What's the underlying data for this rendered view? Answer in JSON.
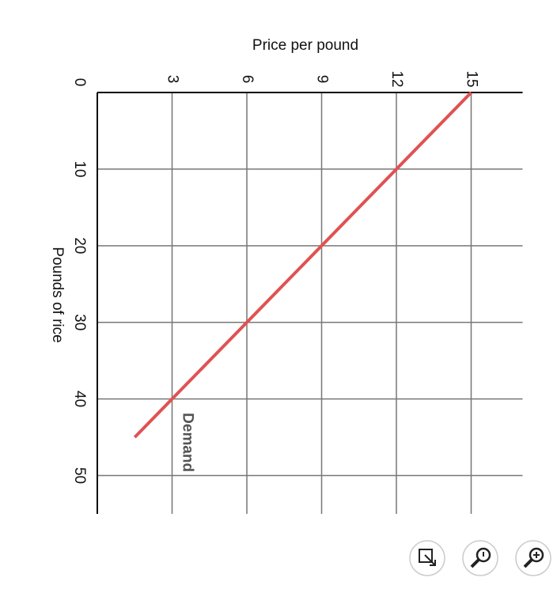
{
  "chart_data": {
    "type": "line",
    "xlabel": "Price per pound",
    "ylabel": "Pounds of rice",
    "x": [
      15,
      1.5
    ],
    "series": [
      {
        "name": "Demand",
        "color": "#e05252",
        "values": [
          0,
          45
        ]
      }
    ],
    "xlim": [
      0,
      17
    ],
    "xticks": [
      3,
      6,
      9,
      12,
      15
    ],
    "ylim": [
      0,
      55
    ],
    "yticks": [
      0,
      10,
      20,
      30,
      40,
      50
    ],
    "grid": true
  }
}
